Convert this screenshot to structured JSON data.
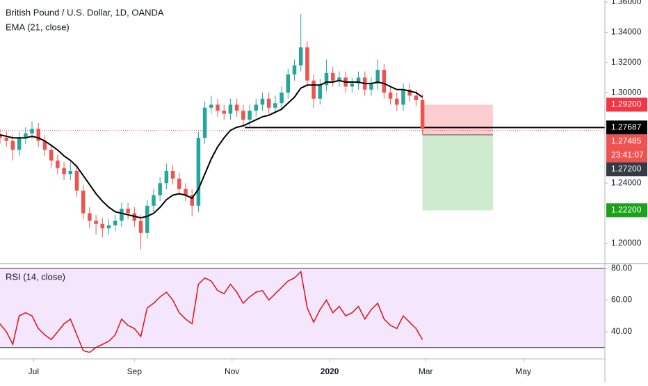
{
  "chart_data": {
    "type": "candlestick",
    "title": "British Pound / U.S. Dollar, 1D, OANDA",
    "indicator_label": "EMA (21, close)",
    "xlim": [
      0,
      378
    ],
    "xticks": [
      {
        "value": 21,
        "label": "Jul"
      },
      {
        "value": 84,
        "label": "Sep"
      },
      {
        "value": 145,
        "label": "Nov"
      },
      {
        "value": 206,
        "label": "2020"
      },
      {
        "value": 266,
        "label": "Mar"
      },
      {
        "value": 327,
        "label": "May"
      }
    ],
    "ylim": [
      1.1871,
      1.3614
    ],
    "yticks": [
      {
        "value": 1.2,
        "label": "1.20000"
      },
      {
        "value": 1.24,
        "label": "1.24000"
      },
      {
        "value": 1.3,
        "label": "1.30000"
      },
      {
        "value": 1.32,
        "label": "1.32000"
      },
      {
        "value": 1.34,
        "label": "1.34000"
      },
      {
        "value": 1.36,
        "label": "1.36000"
      }
    ],
    "up_color": "#26a69a",
    "down_color": "#ef5350",
    "x": [
      0,
      4,
      8,
      12,
      16,
      20,
      24,
      28,
      32,
      36,
      40,
      44,
      48,
      52,
      56,
      60,
      64,
      68,
      72,
      76,
      80,
      84,
      88,
      92,
      96,
      100,
      104,
      108,
      112,
      116,
      120,
      124,
      128,
      132,
      136,
      140,
      144,
      148,
      152,
      156,
      160,
      164,
      168,
      172,
      176,
      180,
      184,
      188,
      192,
      196,
      200,
      204,
      208,
      212,
      216,
      220,
      224,
      228,
      232,
      236,
      240,
      244,
      248,
      252,
      256,
      260,
      264
    ],
    "open": [
      1.272,
      1.27,
      1.268,
      1.262,
      1.27,
      1.273,
      1.276,
      1.268,
      1.262,
      1.255,
      1.25,
      1.246,
      1.248,
      1.235,
      1.22,
      1.215,
      1.213,
      1.21,
      1.212,
      1.215,
      1.223,
      1.22,
      1.215,
      1.207,
      1.225,
      1.232,
      1.24,
      1.248,
      1.243,
      1.236,
      1.232,
      1.225,
      1.27,
      1.29,
      1.292,
      1.288,
      1.286,
      1.292,
      1.288,
      1.282,
      1.288,
      1.292,
      1.296,
      1.29,
      1.293,
      1.3,
      1.312,
      1.318,
      1.33,
      1.308,
      1.296,
      1.305,
      1.313,
      1.308,
      1.31,
      1.304,
      1.306,
      1.31,
      1.302,
      1.306,
      1.315,
      1.3,
      1.296,
      1.292,
      1.302,
      1.298,
      1.295
    ],
    "high": [
      1.276,
      1.274,
      1.272,
      1.274,
      1.277,
      1.281,
      1.28,
      1.272,
      1.266,
      1.259,
      1.254,
      1.254,
      1.252,
      1.239,
      1.224,
      1.219,
      1.217,
      1.216,
      1.219,
      1.227,
      1.227,
      1.224,
      1.219,
      1.229,
      1.236,
      1.244,
      1.253,
      1.252,
      1.247,
      1.24,
      1.236,
      1.274,
      1.294,
      1.298,
      1.296,
      1.292,
      1.296,
      1.296,
      1.292,
      1.292,
      1.296,
      1.3,
      1.3,
      1.298,
      1.304,
      1.316,
      1.322,
      1.352,
      1.334,
      1.312,
      1.309,
      1.322,
      1.317,
      1.314,
      1.314,
      1.31,
      1.314,
      1.314,
      1.31,
      1.322,
      1.319,
      1.304,
      1.3,
      1.306,
      1.306,
      1.302,
      1.299
    ],
    "low": [
      1.266,
      1.264,
      1.255,
      1.258,
      1.266,
      1.269,
      1.264,
      1.258,
      1.25,
      1.246,
      1.242,
      1.242,
      1.231,
      1.216,
      1.21,
      1.206,
      1.204,
      1.206,
      1.208,
      1.211,
      1.216,
      1.211,
      1.196,
      1.203,
      1.221,
      1.228,
      1.236,
      1.239,
      1.232,
      1.228,
      1.218,
      1.221,
      1.266,
      1.286,
      1.284,
      1.282,
      1.282,
      1.284,
      1.277,
      1.278,
      1.284,
      1.288,
      1.286,
      1.286,
      1.289,
      1.296,
      1.308,
      1.314,
      1.304,
      1.29,
      1.292,
      1.301,
      1.304,
      1.304,
      1.3,
      1.3,
      1.302,
      1.298,
      1.298,
      1.302,
      1.296,
      1.292,
      1.288,
      1.288,
      1.294,
      1.291,
      1.272
    ],
    "close": [
      1.27,
      1.268,
      1.262,
      1.27,
      1.273,
      1.276,
      1.268,
      1.262,
      1.255,
      1.25,
      1.246,
      1.248,
      1.235,
      1.22,
      1.215,
      1.213,
      1.21,
      1.212,
      1.215,
      1.223,
      1.22,
      1.215,
      1.207,
      1.225,
      1.232,
      1.24,
      1.248,
      1.243,
      1.236,
      1.232,
      1.225,
      1.27,
      1.29,
      1.292,
      1.288,
      1.286,
      1.292,
      1.288,
      1.282,
      1.288,
      1.292,
      1.296,
      1.29,
      1.293,
      1.3,
      1.312,
      1.318,
      1.33,
      1.308,
      1.296,
      1.305,
      1.313,
      1.308,
      1.31,
      1.304,
      1.306,
      1.31,
      1.302,
      1.306,
      1.315,
      1.3,
      1.296,
      1.292,
      1.302,
      1.298,
      1.295,
      1.276
    ],
    "ema": {
      "color": "#000000",
      "values": [
        1.272,
        1.271,
        1.27,
        1.27,
        1.27,
        1.271,
        1.27,
        1.268,
        1.265,
        1.262,
        1.258,
        1.255,
        1.251,
        1.245,
        1.239,
        1.233,
        1.228,
        1.224,
        1.221,
        1.22,
        1.219,
        1.218,
        1.217,
        1.218,
        1.22,
        1.224,
        1.229,
        1.232,
        1.233,
        1.232,
        1.23,
        1.236,
        1.246,
        1.256,
        1.264,
        1.27,
        1.275,
        1.277,
        1.278,
        1.28,
        1.282,
        1.284,
        1.285,
        1.287,
        1.289,
        1.293,
        1.297,
        1.303,
        1.305,
        1.305,
        1.305,
        1.307,
        1.307,
        1.308,
        1.307,
        1.307,
        1.307,
        1.306,
        1.306,
        1.307,
        1.306,
        1.304,
        1.302,
        1.302,
        1.301,
        1.3,
        1.297
      ]
    },
    "position": {
      "entry": 1.272,
      "stop": 1.292,
      "target": 1.222,
      "x": [
        264,
        308
      ]
    },
    "hline": {
      "value": 1.27687,
      "x": 153,
      "color": "#000000"
    },
    "price_line": {
      "value": 1.27485,
      "color": "#ef5350"
    },
    "price_tags": [
      {
        "label": "1.29200",
        "value": 1.292,
        "color": "#f23645"
      },
      {
        "label": "1.27687",
        "value": 1.27687,
        "color": "#000000"
      },
      {
        "label": "1.27485",
        "value": 1.27485,
        "color": "#ef5350",
        "countdown": "23:41:07"
      },
      {
        "label": "1.27200",
        "value": 1.272,
        "color": "#363a45"
      },
      {
        "label": "1.22200",
        "value": 1.222,
        "color": "#1aa31a"
      }
    ],
    "rsi": {
      "title": "RSI (14, close)",
      "color": "#e01010",
      "ylim": [
        23.3,
        82.6
      ],
      "yticks": [
        {
          "value": 40,
          "label": "40.00"
        },
        {
          "value": 60,
          "label": "60.00"
        },
        {
          "value": 80,
          "label": "80.00"
        }
      ],
      "bands": [
        30,
        80
      ],
      "values": [
        45,
        40,
        32,
        50,
        52,
        50,
        42,
        38,
        35,
        40,
        45,
        48,
        38,
        28,
        27,
        30,
        32,
        34,
        38,
        48,
        44,
        42,
        37,
        55,
        58,
        62,
        65,
        60,
        52,
        48,
        45,
        70,
        74,
        72,
        66,
        64,
        70,
        65,
        58,
        62,
        65,
        66,
        60,
        64,
        68,
        72,
        74,
        78,
        55,
        46,
        54,
        60,
        52,
        56,
        50,
        52,
        56,
        48,
        54,
        58,
        48,
        44,
        42,
        50,
        46,
        42,
        35
      ]
    }
  }
}
